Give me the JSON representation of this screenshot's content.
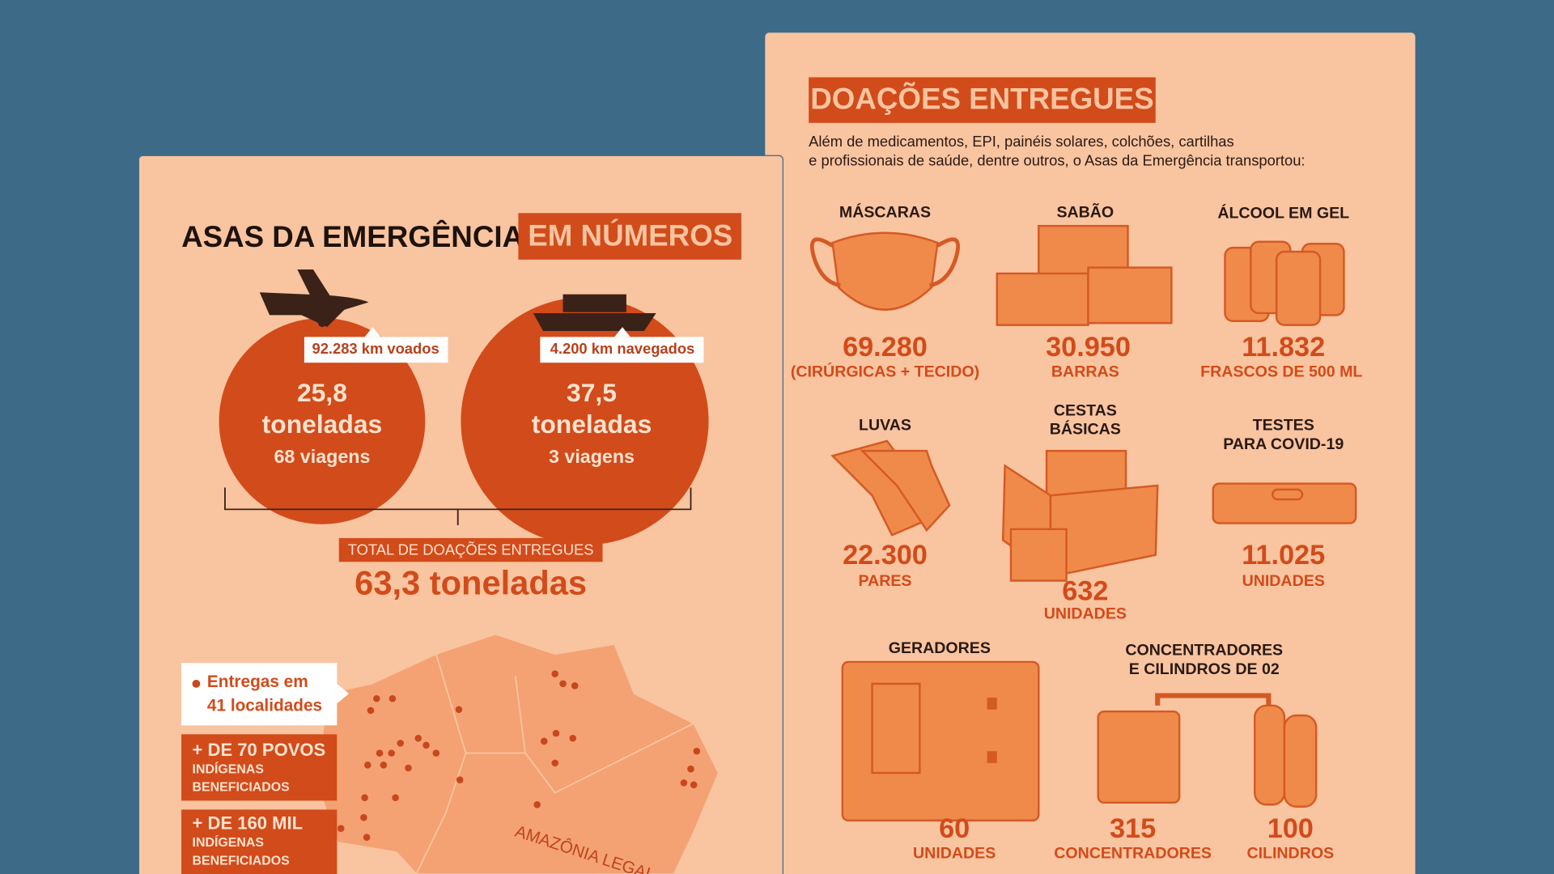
{
  "left": {
    "title": "ASAS DA EMERGÊNCIA",
    "title_highlight": "EM NÚMEROS",
    "air": {
      "label": "92.283 km voados",
      "amount": "25,8",
      "unit": "toneladas",
      "trips": "68 viagens"
    },
    "river": {
      "label": "4.200 km navegados",
      "amount": "37,5",
      "unit": "toneladas",
      "trips": "3 viagens"
    },
    "total": {
      "label": "TOTAL DE DOAÇÕES ENTREGUES",
      "value": "63,3 toneladas"
    },
    "legend": {
      "deliveries": [
        "Entregas em",
        "41 localidades"
      ],
      "peoples": {
        "headline": "+ DE 70 POVOS",
        "lines": [
          "INDÍGENAS",
          "BENEFICIADOS"
        ]
      },
      "beneficiaries": {
        "headline": "+ DE 160 MIL",
        "lines": [
          "INDÍGENAS",
          "BENEFICIADOS"
        ]
      }
    },
    "map_label": "AMAZÔNIA LEGAL"
  },
  "right": {
    "title": "DOAÇÕES ENTREGUES",
    "intro": [
      "Além de medicamentos, EPI, painéis solares, colchões, cartilhas",
      "e profissionais de saúde, dentre outros, o Asas da Emergência transportou:"
    ],
    "items": [
      {
        "name": [
          "MÁSCARAS"
        ],
        "stats": [
          {
            "value": "69.280",
            "unit": "(CIRÚRGICAS + TECIDO)"
          }
        ]
      },
      {
        "name": [
          "SABÃO"
        ],
        "stats": [
          {
            "value": "30.950",
            "unit": "BARRAS"
          }
        ]
      },
      {
        "name": [
          "ÁLCOOL EM GEL"
        ],
        "stats": [
          {
            "value": "11.832",
            "unit": "FRASCOS DE 500 ML"
          }
        ]
      },
      {
        "name": [
          "LUVAS"
        ],
        "stats": [
          {
            "value": "22.300",
            "unit": "PARES"
          }
        ]
      },
      {
        "name": [
          "CESTAS",
          "BÁSICAS"
        ],
        "stats": [
          {
            "value": "632",
            "unit": "UNIDADES"
          }
        ]
      },
      {
        "name": [
          "TESTES",
          "PARA COVID-19"
        ],
        "stats": [
          {
            "value": "11.025",
            "unit": "UNIDADES"
          }
        ]
      },
      {
        "name": [
          "GERADORES"
        ],
        "stats": [
          {
            "value": "60",
            "unit": "UNIDADES"
          }
        ]
      },
      {
        "name": [
          "CONCENTRADORES",
          "E CILINDROS DE 02"
        ],
        "stats": [
          {
            "value": "315",
            "unit": "CONCENTRADORES"
          },
          {
            "value": "100",
            "unit": "CILINDROS"
          }
        ]
      }
    ]
  }
}
